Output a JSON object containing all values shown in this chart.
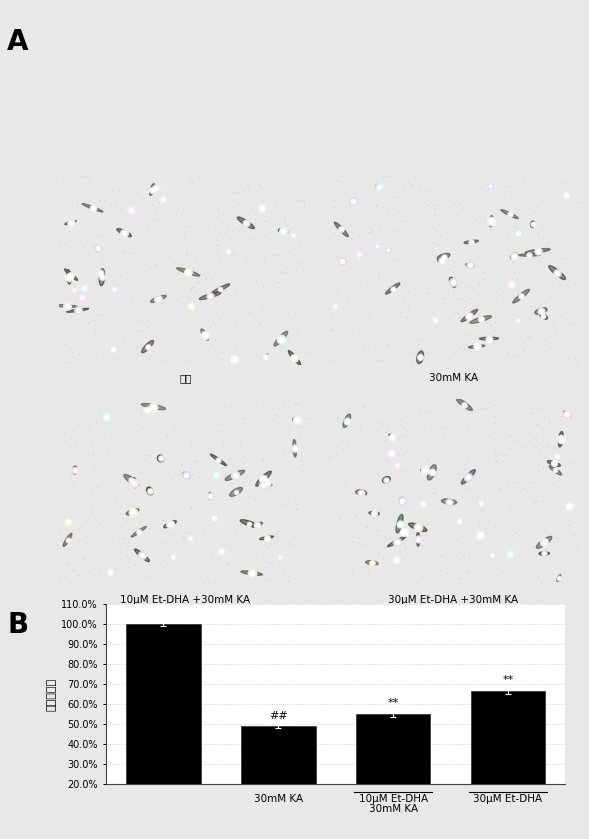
{
  "panel_A_label": "A",
  "panel_B_label": "B",
  "image_captions": [
    "对照",
    "30mM KA",
    "10μM Et-DHA +30mM KA",
    "30μM Et-DHA +30mM KA"
  ],
  "bar_values": [
    100.0,
    49.0,
    55.0,
    66.5
  ],
  "bar_errors": [
    1.0,
    1.0,
    1.5,
    1.5
  ],
  "bar_color": "#000000",
  "xlabel_row1": [
    "",
    "30mM KA",
    "10μM Et-DHA",
    "30μM Et-DHA"
  ],
  "xlabel_row2": "30mM KA",
  "ylabel": "细胞存活率",
  "ylim": [
    20.0,
    110.0
  ],
  "yticks": [
    20.0,
    30.0,
    40.0,
    50.0,
    60.0,
    70.0,
    80.0,
    90.0,
    100.0,
    110.0
  ],
  "ytick_labels": [
    "20.0%",
    "30.0%",
    "40.0%",
    "50.0%",
    "60.0%",
    "70.0%",
    "80.0%",
    "90.0%",
    "100.0%",
    "110.0%"
  ],
  "annotations": [
    "",
    "##",
    "**",
    "**"
  ],
  "figure_bg": "#e8e8e8",
  "plot_bg": "#ffffff",
  "grid_color": "#bbbbbb",
  "img_bg": "#0a0a0a",
  "cell_seeds": [
    42,
    123,
    7,
    99
  ]
}
